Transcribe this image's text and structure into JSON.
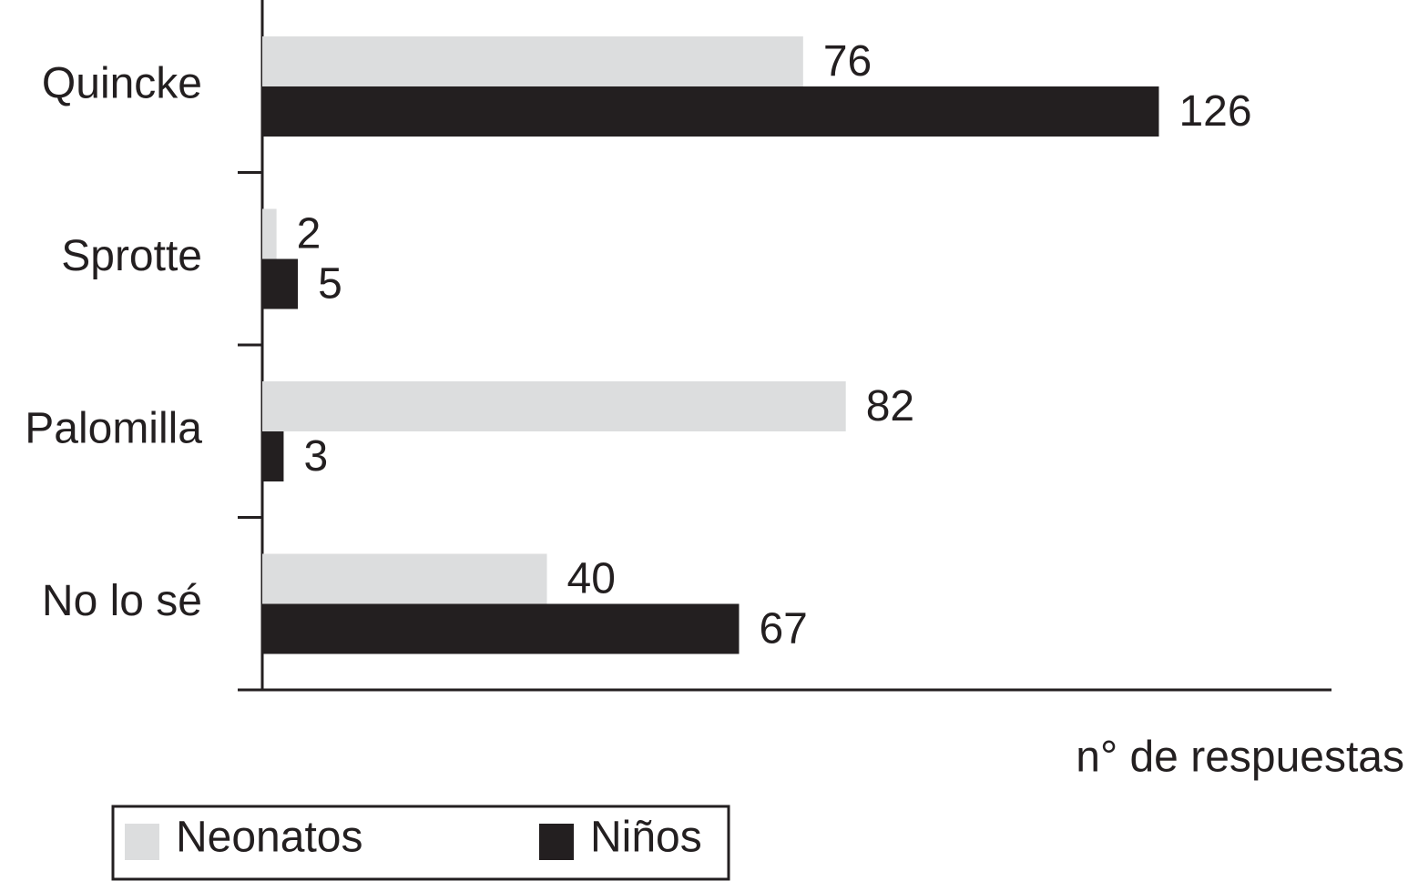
{
  "chart_data": {
    "type": "hbar",
    "categories": [
      "Quincke",
      "Sprotte",
      "Palomilla",
      "No lo sé"
    ],
    "series": [
      {
        "name": "Neonatos",
        "color": "#dcddde",
        "values": [
          76,
          2,
          82,
          40
        ]
      },
      {
        "name": "Niños",
        "color": "#231f20",
        "values": [
          126,
          5,
          3,
          67
        ]
      }
    ],
    "xlabel": "n° de respuestas",
    "xlim": [
      0,
      150
    ]
  }
}
